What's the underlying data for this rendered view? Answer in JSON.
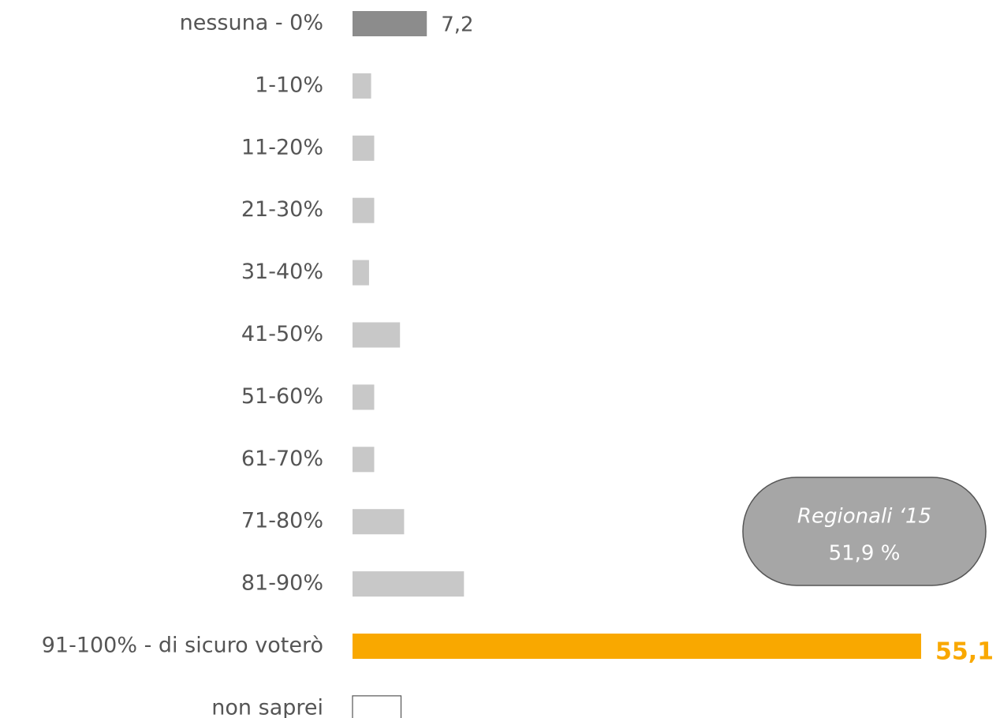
{
  "chart_data": {
    "type": "bar",
    "orientation": "horizontal",
    "categories": [
      "nessuna - 0%",
      "1-10%",
      "11-20%",
      "21-30%",
      "31-40%",
      "41-50%",
      "51-60%",
      "61-70%",
      "71-80%",
      "81-90%",
      "91-100% - di sicuro voterò",
      "non saprei"
    ],
    "values": [
      7.2,
      1.8,
      2.1,
      2.1,
      1.6,
      4.6,
      2.1,
      2.1,
      5.0,
      10.8,
      55.1,
      4.7
    ],
    "value_labels": [
      "7,2",
      null,
      null,
      null,
      null,
      null,
      null,
      null,
      null,
      null,
      "55,1",
      null
    ],
    "colors": [
      "#8c8c8c",
      "#c8c8c8",
      "#c8c8c8",
      "#c8c8c8",
      "#c8c8c8",
      "#c8c8c8",
      "#c8c8c8",
      "#c8c8c8",
      "#c8c8c8",
      "#c8c8c8",
      "#f9a800",
      "#ffffff"
    ],
    "xlim": [
      0,
      60
    ],
    "annotation": {
      "title": "Regionali ‘15",
      "text": "51,9 %"
    }
  }
}
